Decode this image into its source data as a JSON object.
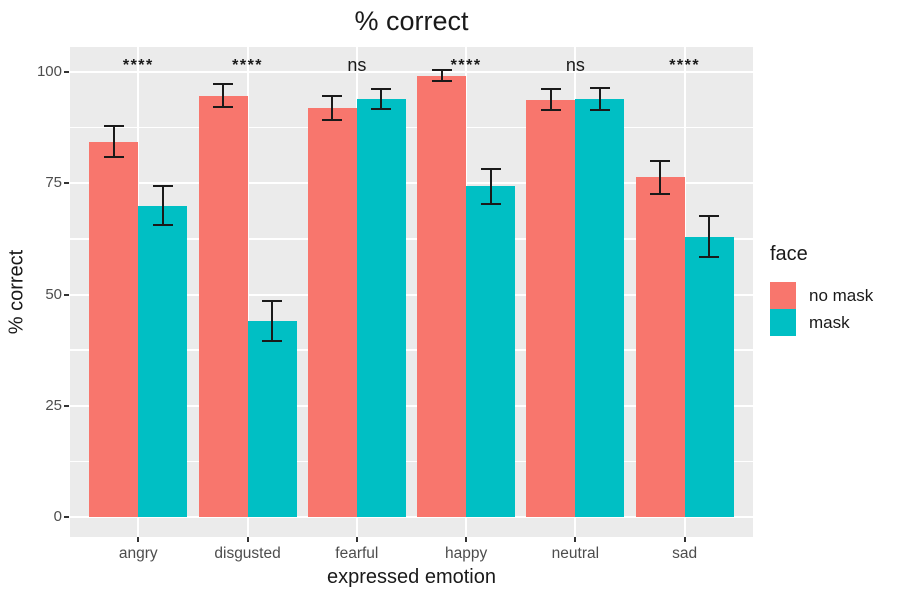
{
  "title": "% correct",
  "axes": {
    "y_title": "% correct",
    "x_title": "expressed emotion",
    "y_tick_labels": [
      "0",
      "25",
      "50",
      "75",
      "100"
    ],
    "y_tick_values": [
      0,
      25,
      50,
      75,
      100
    ],
    "y_minor_values": [
      12.5,
      37.5,
      62.5,
      87.5
    ]
  },
  "legend": {
    "title": "face",
    "items": [
      {
        "label": "no mask",
        "color": "#F8766D"
      },
      {
        "label": "mask",
        "color": "#00BFC4"
      }
    ]
  },
  "chart_data": {
    "type": "bar",
    "title": "% correct",
    "xlabel": "expressed emotion",
    "ylabel": "% correct",
    "ylim": [
      0,
      100
    ],
    "grid": true,
    "legend_position": "right",
    "panel_background": "#EBEBEB",
    "grid_color": "#FFFFFF",
    "categories": [
      "angry",
      "disgusted",
      "fearful",
      "happy",
      "neutral",
      "sad"
    ],
    "series": [
      {
        "name": "no mask",
        "color": "#F8766D",
        "values": [
          84.3,
          94.7,
          92.0,
          99.2,
          93.8,
          76.3
        ],
        "errors": [
          3.5,
          2.5,
          2.7,
          1.2,
          2.4,
          3.8
        ]
      },
      {
        "name": "mask",
        "color": "#00BFC4",
        "values": [
          70.0,
          44.0,
          93.9,
          74.3,
          93.9,
          63.0
        ],
        "errors": [
          4.3,
          4.5,
          2.3,
          4.0,
          2.5,
          4.6
        ]
      }
    ],
    "significance": [
      "****",
      "****",
      "ns",
      "****",
      "ns",
      "****"
    ]
  }
}
